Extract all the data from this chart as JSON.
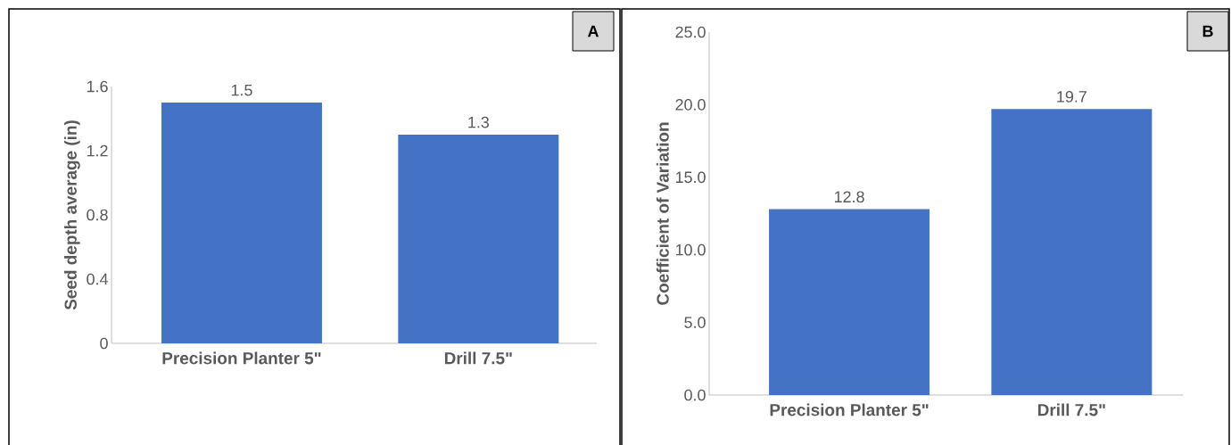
{
  "chart_data": [
    {
      "type": "bar",
      "categories": [
        "Precision Planter 5\"",
        "Drill 7.5\""
      ],
      "values": [
        1.5,
        1.3
      ],
      "color": "#4472c4",
      "ylabel": "Seed depth average (in)",
      "ylim": [
        0,
        1.6
      ],
      "yticks": [
        0,
        0.4,
        0.8,
        1.2,
        1.6
      ],
      "data_labels": true,
      "annotations": [
        "A"
      ]
    },
    {
      "type": "bar",
      "categories": [
        "Precision Planter 5\"",
        "Drill 7.5\""
      ],
      "values": [
        12.8,
        19.7
      ],
      "color": "#4472c4",
      "ylabel": "Coefficient of Variation",
      "ylim": [
        0,
        25
      ],
      "yticks": [
        {
          "value": 0,
          "label": "0.0"
        },
        {
          "value": 5,
          "label": "5.0"
        },
        {
          "value": 10,
          "label": "10.0"
        },
        {
          "value": 15,
          "label": "15.0"
        },
        {
          "value": 20,
          "label": "20.0"
        },
        {
          "value": 25,
          "label": "25.0"
        }
      ],
      "data_labels": true,
      "annotations": [
        "B"
      ]
    }
  ]
}
